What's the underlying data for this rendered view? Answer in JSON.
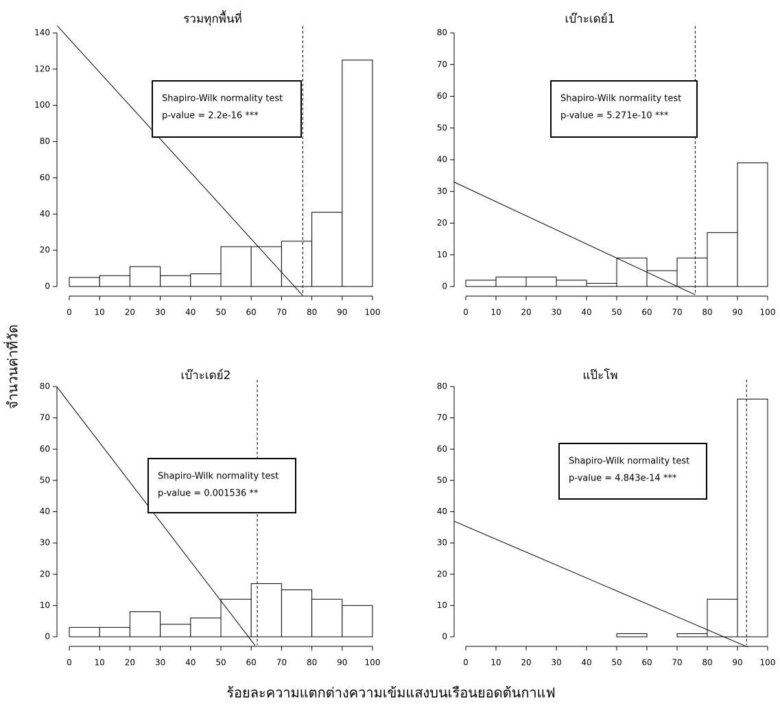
{
  "xlabel": "ร้อยละความแตกต่างความเข้มแสงบนเรือนยอดต้นกาแฟ",
  "ylabel": "จำนวนค่าที่วัด",
  "chart_data": [
    {
      "type": "histogram",
      "title": "รวมทุกพื้นที่",
      "bins": [
        0,
        10,
        20,
        30,
        40,
        50,
        60,
        70,
        80,
        90,
        100
      ],
      "values": [
        5,
        6,
        11,
        6,
        7,
        22,
        22,
        25,
        41,
        125
      ],
      "xlim": [
        0,
        100
      ],
      "xticks": [
        0,
        10,
        20,
        30,
        40,
        50,
        60,
        70,
        80,
        90,
        100
      ],
      "ylim": [
        0,
        140
      ],
      "yticks": [
        0,
        20,
        40,
        60,
        80,
        100,
        120,
        140
      ],
      "vline": 77,
      "trend_x": [
        -4,
        77
      ],
      "trend_y": [
        144,
        -5
      ],
      "annotation": [
        "Shapiro-Wilk normality test",
        "p-value = 2.2e-16 ***"
      ]
    },
    {
      "type": "histogram",
      "title": "เบ๊าะเดย์1",
      "bins": [
        0,
        10,
        20,
        30,
        40,
        50,
        60,
        70,
        80,
        90,
        100
      ],
      "values": [
        2,
        3,
        3,
        2,
        1,
        9,
        5,
        9,
        17,
        39
      ],
      "xlim": [
        0,
        100
      ],
      "xticks": [
        0,
        10,
        20,
        30,
        40,
        50,
        60,
        70,
        80,
        90,
        100
      ],
      "ylim": [
        0,
        80
      ],
      "yticks": [
        0,
        10,
        20,
        30,
        40,
        50,
        60,
        70,
        80
      ],
      "vline": 76,
      "trend_x": [
        -4,
        76
      ],
      "trend_y": [
        33,
        -2.6
      ],
      "annotation": [
        "Shapiro-Wilk normality test",
        "p-value = 5.271e-10 ***"
      ]
    },
    {
      "type": "histogram",
      "title": "เบ๊าะเดย์2",
      "bins": [
        0,
        10,
        20,
        30,
        40,
        50,
        60,
        70,
        80,
        90,
        100
      ],
      "values": [
        3,
        3,
        8,
        4,
        6,
        12,
        17,
        15,
        12,
        10
      ],
      "xlim": [
        0,
        100
      ],
      "xticks": [
        0,
        10,
        20,
        30,
        40,
        50,
        60,
        70,
        80,
        90,
        100
      ],
      "ylim": [
        0,
        80
      ],
      "yticks": [
        0,
        10,
        20,
        30,
        40,
        50,
        60,
        70,
        80
      ],
      "vline": 62,
      "trend_x": [
        -4,
        61.3
      ],
      "trend_y": [
        79.8,
        -2.8
      ],
      "annotation": [
        "Shapiro-Wilk normality test",
        "p-value = 0.001536 **"
      ]
    },
    {
      "type": "histogram",
      "title": "แป๊ะโพ",
      "bins": [
        0,
        10,
        20,
        30,
        40,
        50,
        60,
        70,
        80,
        90,
        100
      ],
      "values": [
        0,
        0,
        0,
        0,
        0,
        1,
        0,
        1,
        12,
        76
      ],
      "xlim": [
        0,
        100
      ],
      "xticks": [
        0,
        10,
        20,
        30,
        40,
        50,
        60,
        70,
        80,
        90,
        100
      ],
      "ylim": [
        0,
        80
      ],
      "yticks": [
        0,
        10,
        20,
        30,
        40,
        50,
        60,
        70,
        80
      ],
      "vline": 93,
      "trend_x": [
        -4,
        93.4
      ],
      "trend_y": [
        37,
        -3.3
      ],
      "annotation": [
        "Shapiro-Wilk normality test",
        "p-value = 4.843e-14 ***"
      ]
    }
  ]
}
